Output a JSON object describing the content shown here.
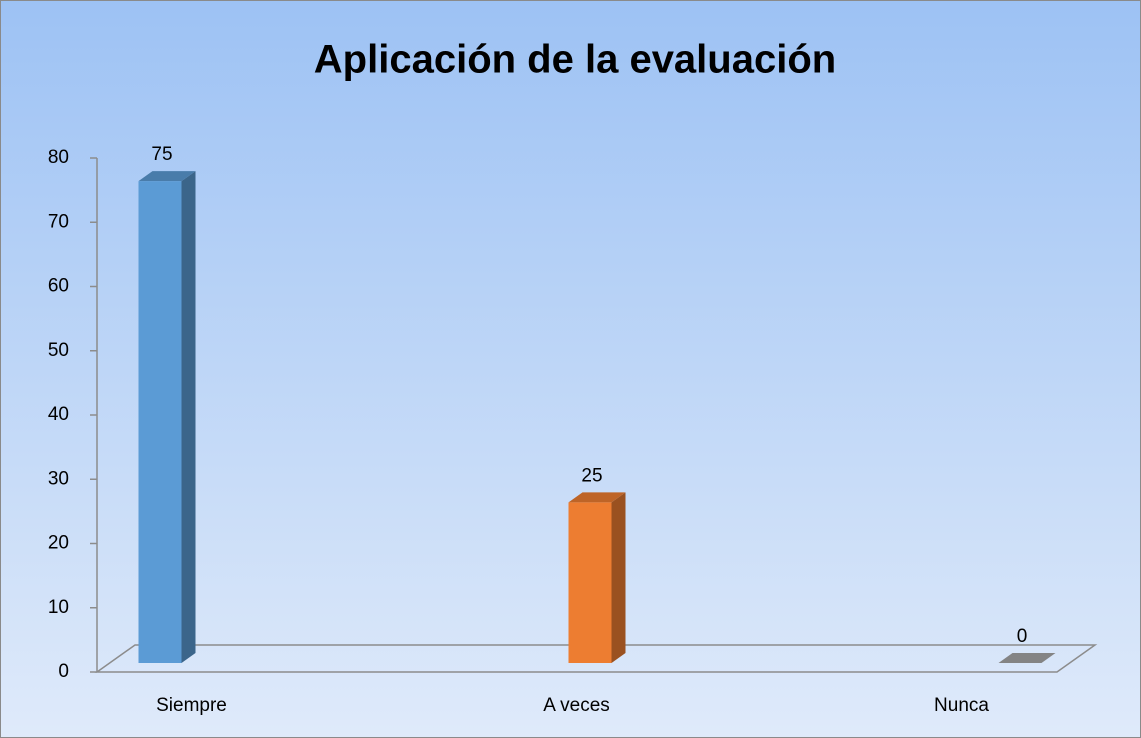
{
  "chart_data": {
    "type": "bar3d",
    "title": "Aplicación de la evaluación",
    "categories": [
      "Siempre",
      "A veces",
      "Nunca"
    ],
    "values": [
      75,
      25,
      0
    ],
    "colors": [
      "#5b9bd5",
      "#ed7d31",
      "#a5a5a5"
    ],
    "ylim": [
      0,
      80
    ],
    "yticks": [
      0,
      10,
      20,
      30,
      40,
      50,
      60,
      70,
      80
    ]
  }
}
